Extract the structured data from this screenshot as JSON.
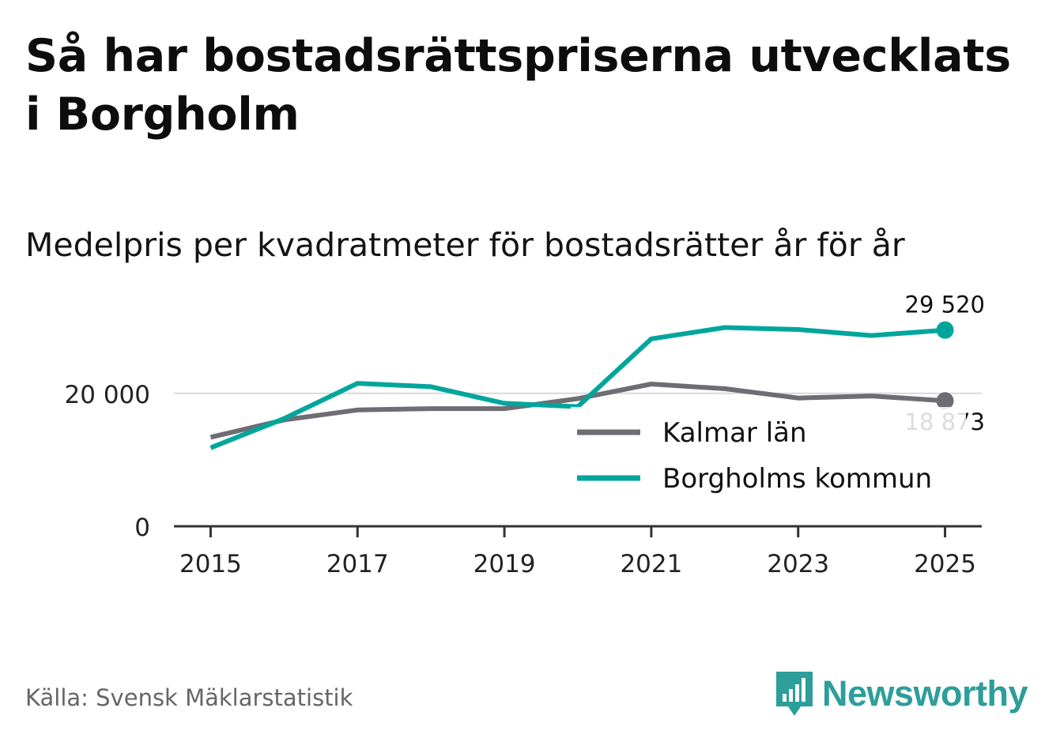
{
  "title": "Så har bostadsrättspriserna utvecklats i Borgholm",
  "subtitle": "Medelpris per kvadratmeter för bostadsrätter år för år",
  "source": "Källa: Svensk Mäklarstatistik",
  "brand": {
    "name": "Newsworthy",
    "logo_icon": "bar-chart-speech-bubble-icon",
    "color": "#2d9e9a"
  },
  "chart_data": {
    "type": "line",
    "title": "Så har bostadsrättspriserna utvecklats i Borgholm",
    "subtitle": "Medelpris per kvadratmeter för bostadsrätter år för år",
    "xlabel": "",
    "ylabel": "",
    "x": [
      2015,
      2016,
      2017,
      2018,
      2019,
      2020,
      2021,
      2022,
      2023,
      2024,
      2025
    ],
    "xticks": [
      2015,
      2017,
      2019,
      2021,
      2023,
      2025
    ],
    "xtick_labels": [
      "2015",
      "2017",
      "2019",
      "2021",
      "2023",
      "2025"
    ],
    "yticks": [
      0,
      20000
    ],
    "ytick_labels": [
      "0",
      "20 000"
    ],
    "ylim": [
      0,
      34000
    ],
    "xlim": [
      2014.5,
      2025.5
    ],
    "grid": "horizontal",
    "legend_position": "center-right",
    "series": [
      {
        "name": "Kalmar län",
        "color": "#6f6c74",
        "values": [
          13400,
          16000,
          17500,
          17700,
          17700,
          19200,
          21400,
          20700,
          19300,
          19600,
          18873
        ],
        "end_label": "18 873"
      },
      {
        "name": "Borgholms kommun",
        "color": "#00a69c",
        "values": [
          11800,
          16200,
          21500,
          21000,
          18500,
          18000,
          28200,
          29900,
          29600,
          28700,
          29520
        ],
        "end_label": "29 520"
      }
    ]
  }
}
